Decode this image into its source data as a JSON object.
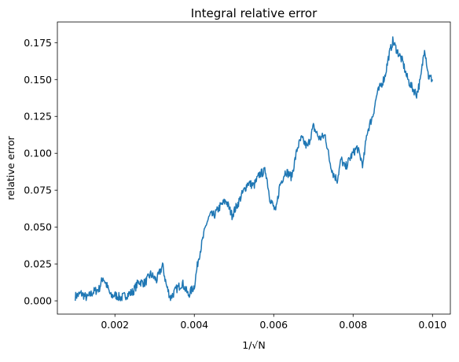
{
  "chart_data": {
    "type": "line",
    "title": "Integral relative error",
    "xlabel": "1/√N",
    "ylabel": "relative error",
    "xlim": [
      0.00055,
      0.01045
    ],
    "ylim": [
      -0.009,
      0.189
    ],
    "xticks": [
      0.002,
      0.004,
      0.006,
      0.008,
      0.01
    ],
    "xtick_labels": [
      "0.002",
      "0.004",
      "0.006",
      "0.008",
      "0.010"
    ],
    "yticks": [
      0.0,
      0.025,
      0.05,
      0.075,
      0.1,
      0.125,
      0.15,
      0.175
    ],
    "ytick_labels": [
      "0.000",
      "0.025",
      "0.050",
      "0.075",
      "0.100",
      "0.125",
      "0.150",
      "0.175"
    ],
    "grid": false,
    "series": [
      {
        "color": "#1f77b4",
        "x": [
          0.001,
          0.00115,
          0.0013,
          0.00145,
          0.0016,
          0.0017,
          0.0018,
          0.0019,
          0.002,
          0.00215,
          0.0023,
          0.00245,
          0.0026,
          0.00275,
          0.0029,
          0.00305,
          0.0032,
          0.0033,
          0.0034,
          0.00355,
          0.0037,
          0.00385,
          0.004,
          0.0041,
          0.0042,
          0.0043,
          0.0044,
          0.0045,
          0.00465,
          0.0048,
          0.00495,
          0.0051,
          0.0052,
          0.00535,
          0.0055,
          0.00565,
          0.0058,
          0.0059,
          0.00605,
          0.00615,
          0.0063,
          0.00645,
          0.0066,
          0.0067,
          0.00685,
          0.007,
          0.00715,
          0.0073,
          0.0074,
          0.0075,
          0.0076,
          0.0077,
          0.0078,
          0.00795,
          0.0081,
          0.00825,
          0.00835,
          0.0085,
          0.0086,
          0.0087,
          0.0088,
          0.0089,
          0.009,
          0.0091,
          0.00925,
          0.00935,
          0.00945,
          0.0096,
          0.0097,
          0.0098,
          0.0099,
          0.01
        ],
        "y": [
          0.003,
          0.005,
          0.002,
          0.006,
          0.008,
          0.016,
          0.01,
          0.003,
          0.004,
          0.002,
          0.004,
          0.006,
          0.013,
          0.012,
          0.018,
          0.014,
          0.024,
          0.01,
          0.002,
          0.008,
          0.012,
          0.004,
          0.01,
          0.028,
          0.04,
          0.052,
          0.058,
          0.058,
          0.064,
          0.068,
          0.058,
          0.066,
          0.072,
          0.08,
          0.078,
          0.086,
          0.088,
          0.07,
          0.06,
          0.078,
          0.088,
          0.084,
          0.104,
          0.11,
          0.104,
          0.118,
          0.11,
          0.112,
          0.096,
          0.086,
          0.082,
          0.096,
          0.09,
          0.098,
          0.104,
          0.092,
          0.114,
          0.126,
          0.14,
          0.146,
          0.152,
          0.166,
          0.176,
          0.17,
          0.162,
          0.152,
          0.146,
          0.14,
          0.15,
          0.172,
          0.152,
          0.15
        ]
      }
    ]
  }
}
